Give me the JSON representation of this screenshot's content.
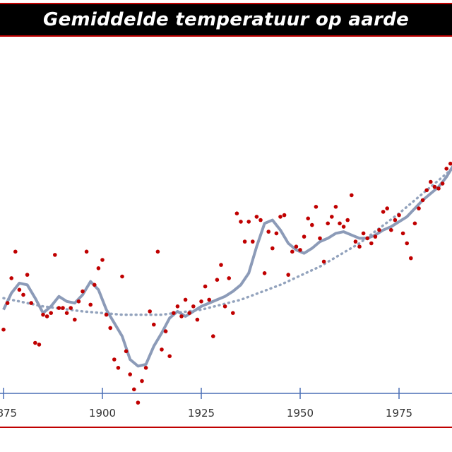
{
  "title": "Gemiddelde temperatuur op aarde",
  "colors": {
    "title_bg": "#000000",
    "title_text": "#ffffff",
    "frame": "#c00000",
    "points": "#c00000",
    "smooth_line": "#8c9bb8",
    "trend_line": "#93a3bd",
    "axis": "#4a6fb5"
  },
  "chart_data": {
    "type": "scatter",
    "title": "Gemiddelde temperatuur op aarde",
    "xlabel": "",
    "ylabel": "",
    "xlim": [
      1875,
      1989
    ],
    "ylim": [
      -0.8,
      1.0
    ],
    "xticks": [
      {
        "value": 1875,
        "label": "1875"
      },
      {
        "value": 1900,
        "label": "1900"
      },
      {
        "value": 1925,
        "label": "1925"
      },
      {
        "value": 1950,
        "label": "1950"
      },
      {
        "value": 1975,
        "label": "1975"
      }
    ],
    "grid": false,
    "legend": "none",
    "series": [
      {
        "kind": "points",
        "x": [
          1875,
          1876,
          1877,
          1878,
          1879,
          1880,
          1881,
          1882,
          1883,
          1884,
          1885,
          1886,
          1887,
          1888,
          1889,
          1890,
          1891,
          1892,
          1893,
          1894,
          1895,
          1896,
          1897,
          1898,
          1899,
          1900,
          1901,
          1902,
          1903,
          1904,
          1905,
          1906,
          1907,
          1908,
          1909,
          1910,
          1911,
          1912,
          1913,
          1914,
          1915,
          1916,
          1917,
          1918,
          1919,
          1920,
          1921,
          1922,
          1923,
          1924,
          1925,
          1926,
          1927,
          1928,
          1929,
          1930,
          1931,
          1932,
          1933,
          1934,
          1935,
          1936,
          1937,
          1938,
          1939,
          1940,
          1941,
          1942,
          1943,
          1944,
          1945,
          1946,
          1947,
          1948,
          1949,
          1950,
          1951,
          1952,
          1953,
          1954,
          1955,
          1956,
          1957,
          1958,
          1959,
          1960,
          1961,
          1962,
          1963,
          1964,
          1965,
          1966,
          1967,
          1968,
          1969,
          1970,
          1971,
          1972,
          1973,
          1974,
          1975,
          1976,
          1977,
          1978,
          1979,
          1980,
          1981,
          1982,
          1983,
          1984,
          1985,
          1986,
          1987,
          1988,
          1989
        ],
        "y": [
          -0.22,
          -0.06,
          0.09,
          0.25,
          0.02,
          -0.01,
          0.11,
          -0.06,
          -0.3,
          -0.31,
          -0.13,
          -0.14,
          -0.12,
          0.23,
          -0.09,
          -0.09,
          -0.12,
          -0.09,
          -0.16,
          -0.05,
          0.01,
          0.25,
          -0.07,
          0.05,
          0.15,
          0.2,
          -0.13,
          -0.21,
          -0.4,
          -0.45,
          0.1,
          -0.35,
          -0.49,
          -0.58,
          -0.66,
          -0.53,
          -0.45,
          -0.11,
          -0.19,
          0.25,
          -0.34,
          -0.23,
          -0.38,
          -0.12,
          -0.08,
          -0.14,
          -0.04,
          -0.12,
          -0.08,
          -0.16,
          -0.05,
          0.04,
          -0.04,
          -0.26,
          0.08,
          0.17,
          -0.08,
          0.09,
          -0.12,
          0.48,
          0.43,
          0.31,
          0.43,
          0.31,
          0.46,
          0.44,
          0.12,
          0.37,
          0.27,
          0.36,
          0.46,
          0.47,
          0.11,
          0.25,
          0.28,
          0.26,
          0.34,
          0.45,
          0.41,
          0.52,
          0.33,
          0.19,
          0.42,
          0.46,
          0.52,
          0.42,
          0.4,
          0.44,
          0.59,
          0.31,
          0.28,
          0.36,
          0.33,
          0.3,
          0.34,
          0.38,
          0.49,
          0.51,
          0.38,
          0.44,
          0.47,
          0.36,
          0.3,
          0.21,
          0.42,
          0.51,
          0.56,
          0.62,
          0.67,
          0.64,
          0.63,
          0.66,
          0.75,
          0.78,
          0.72
        ]
      },
      {
        "kind": "smoothed",
        "x": [
          1875,
          1877,
          1879,
          1881,
          1883,
          1885,
          1887,
          1889,
          1891,
          1893,
          1895,
          1897,
          1899,
          1901,
          1903,
          1905,
          1907,
          1909,
          1911,
          1913,
          1915,
          1917,
          1919,
          1921,
          1923,
          1925,
          1927,
          1929,
          1931,
          1933,
          1935,
          1937,
          1939,
          1941,
          1943,
          1945,
          1947,
          1949,
          1951,
          1953,
          1955,
          1957,
          1959,
          1961,
          1963,
          1965,
          1967,
          1969,
          1971,
          1973,
          1975,
          1977,
          1979,
          1981,
          1983,
          1985,
          1987,
          1989
        ],
        "y": [
          -0.1,
          0.0,
          0.06,
          0.05,
          -0.03,
          -0.12,
          -0.08,
          -0.02,
          -0.05,
          -0.06,
          -0.01,
          0.07,
          0.02,
          -0.1,
          -0.18,
          -0.26,
          -0.4,
          -0.44,
          -0.43,
          -0.32,
          -0.24,
          -0.15,
          -0.11,
          -0.14,
          -0.11,
          -0.08,
          -0.06,
          -0.04,
          -0.02,
          0.01,
          0.05,
          0.12,
          0.28,
          0.42,
          0.44,
          0.38,
          0.3,
          0.26,
          0.24,
          0.27,
          0.31,
          0.33,
          0.36,
          0.37,
          0.35,
          0.33,
          0.33,
          0.35,
          0.38,
          0.4,
          0.43,
          0.46,
          0.51,
          0.56,
          0.6,
          0.64,
          0.7,
          0.78
        ]
      },
      {
        "kind": "trend",
        "x": [
          1875,
          1885,
          1895,
          1905,
          1915,
          1925,
          1935,
          1945,
          1955,
          1965,
          1975,
          1985,
          1989
        ],
        "y": [
          -0.03,
          -0.08,
          -0.11,
          -0.13,
          -0.13,
          -0.1,
          -0.04,
          0.05,
          0.16,
          0.3,
          0.48,
          0.68,
          0.76
        ]
      }
    ]
  }
}
